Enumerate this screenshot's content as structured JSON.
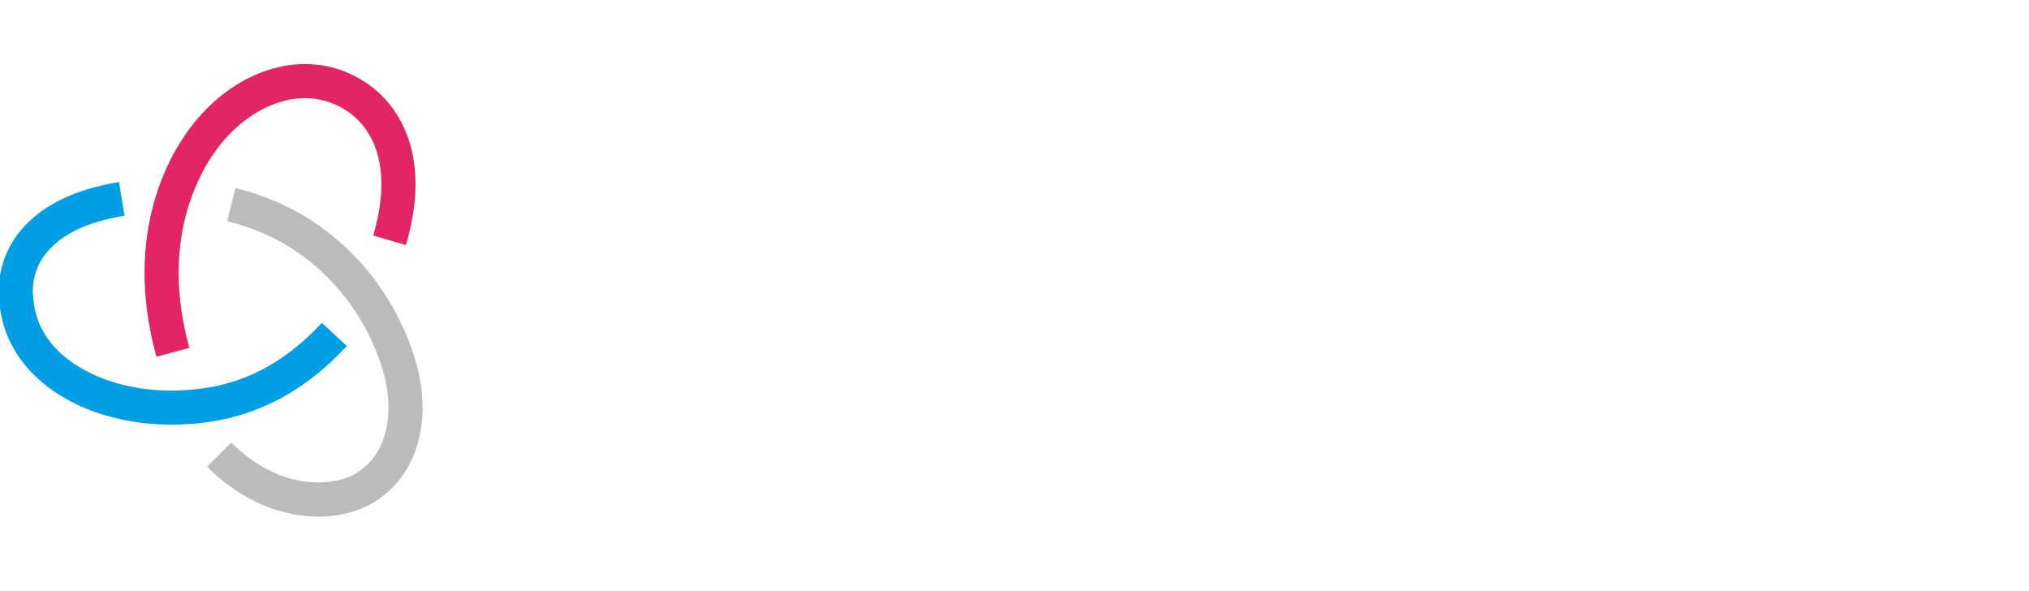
{
  "logo": {
    "icon": "triple-interlocking-rings-icon",
    "wordmark": "",
    "colors": {
      "ring_pink": "#E32566",
      "ring_blue": "#009FE3",
      "ring_gray": "#BCBABB",
      "wordmark": "#FFFFFF",
      "background": "#FFFFFF"
    }
  }
}
